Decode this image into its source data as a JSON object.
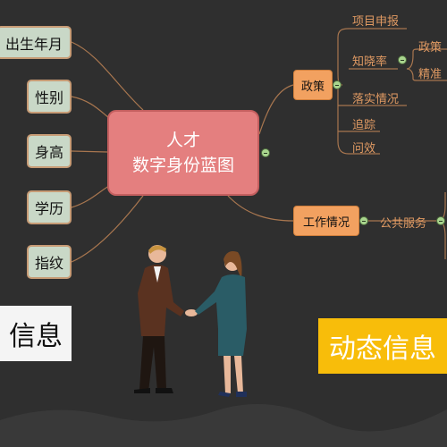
{
  "central_topic": {
    "line1": "人才",
    "line2": "数字身份蓝图"
  },
  "left_nodes": [
    "出生年月",
    "性别",
    "身高",
    "学历",
    "指纹"
  ],
  "policy_node": {
    "label": "政策",
    "children": [
      "项目申报",
      "知晓率",
      "落实情况",
      "追踪",
      "问效"
    ],
    "awareness_children": [
      "政策",
      "精准"
    ]
  },
  "work_node": {
    "label": "工作情况",
    "children": [
      "公共服务"
    ]
  },
  "static_info_label": "信息",
  "dynamic_info_label": "动态信息",
  "colors": {
    "background": "#2f2f2f",
    "central_fill": "#e47f7f",
    "left_node_fill": "#c9d8c7",
    "orange_node_fill": "#f2a160",
    "branch_text": "#e09a63",
    "connector": "#a8764f",
    "dynamic_box": "#f8bd0a",
    "static_box": "#f4f4f4"
  }
}
